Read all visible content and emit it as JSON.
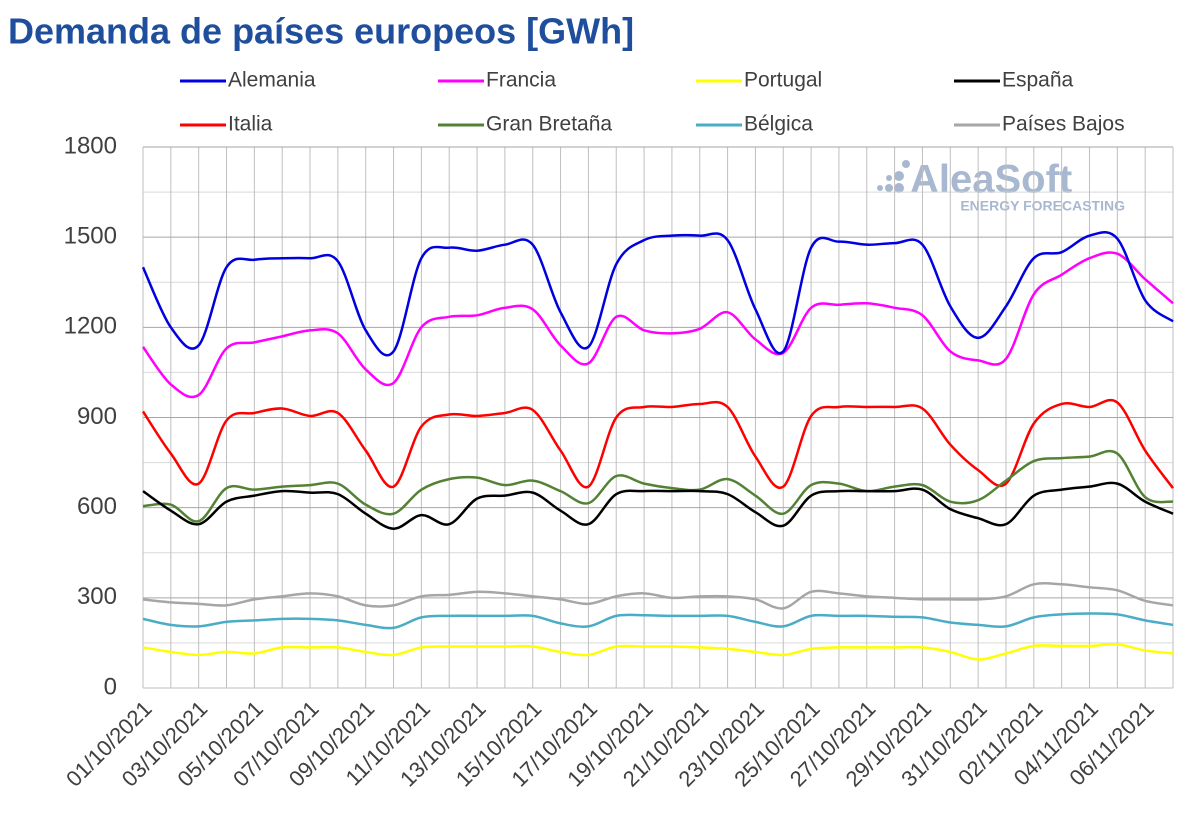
{
  "chart_data": {
    "type": "line",
    "title": "Demanda de países europeos [GWh]",
    "logo": {
      "name": "AleaSoft",
      "tagline": "ENERGY FORECASTING"
    },
    "categories": [
      "01/10/2021",
      null,
      "03/10/2021",
      null,
      "05/10/2021",
      null,
      "07/10/2021",
      null,
      "09/10/2021",
      null,
      "11/10/2021",
      null,
      "13/10/2021",
      null,
      "15/10/2021",
      null,
      "17/10/2021",
      null,
      "19/10/2021",
      null,
      "21/10/2021",
      null,
      "23/10/2021",
      null,
      "25/10/2021",
      null,
      "27/10/2021",
      null,
      "29/10/2021",
      null,
      "31/10/2021",
      null,
      "02/11/2021",
      null,
      "04/11/2021",
      null,
      "06/11/2021",
      null
    ],
    "ylim": [
      0,
      1800
    ],
    "yticks": [
      0,
      300,
      600,
      900,
      1200,
      1500,
      1800
    ],
    "yminorticks": [
      150,
      450,
      750,
      1050,
      1350,
      1650
    ],
    "grid": true,
    "smooth": true,
    "legend": "top",
    "series": [
      {
        "name": "Alemania",
        "color": "#0000e0",
        "values": [
          1400,
          1200,
          1140,
          1400,
          1425,
          1430,
          1430,
          1420,
          1190,
          1120,
          1430,
          1465,
          1455,
          1475,
          1475,
          1250,
          1135,
          1410,
          1490,
          1505,
          1505,
          1490,
          1260,
          1120,
          1465,
          1485,
          1475,
          1480,
          1475,
          1270,
          1165,
          1270,
          1430,
          1450,
          1505,
          1495,
          1290,
          1220
        ]
      },
      {
        "name": "Francia",
        "color": "#ff00ff",
        "values": [
          1135,
          1010,
          975,
          1130,
          1150,
          1170,
          1190,
          1180,
          1060,
          1015,
          1200,
          1235,
          1240,
          1265,
          1260,
          1140,
          1080,
          1235,
          1190,
          1180,
          1195,
          1250,
          1160,
          1115,
          1265,
          1275,
          1280,
          1265,
          1240,
          1120,
          1090,
          1095,
          1310,
          1375,
          1430,
          1445,
          1360,
          1280
        ]
      },
      {
        "name": "Portugal",
        "color": "#ffff00",
        "values": [
          135,
          120,
          110,
          120,
          115,
          135,
          135,
          135,
          120,
          110,
          135,
          138,
          138,
          138,
          138,
          120,
          110,
          138,
          138,
          138,
          135,
          130,
          120,
          110,
          130,
          135,
          135,
          135,
          135,
          120,
          95,
          115,
          140,
          140,
          140,
          145,
          125,
          115
        ]
      },
      {
        "name": "España",
        "color": "#000000",
        "values": [
          655,
          590,
          545,
          620,
          640,
          655,
          650,
          645,
          580,
          530,
          575,
          545,
          630,
          640,
          650,
          590,
          545,
          645,
          655,
          655,
          655,
          645,
          585,
          540,
          640,
          655,
          655,
          655,
          660,
          595,
          565,
          545,
          640,
          660,
          670,
          680,
          620,
          580
        ]
      },
      {
        "name": "Italia",
        "color": "#ff0000",
        "values": [
          920,
          780,
          680,
          890,
          915,
          930,
          905,
          915,
          790,
          670,
          870,
          910,
          905,
          915,
          925,
          790,
          670,
          900,
          935,
          935,
          945,
          935,
          770,
          670,
          905,
          935,
          935,
          935,
          930,
          810,
          725,
          680,
          880,
          945,
          935,
          950,
          790,
          665
        ]
      },
      {
        "name": "Gran Bretaña",
        "color": "#548235",
        "values": [
          605,
          610,
          555,
          665,
          660,
          670,
          675,
          680,
          610,
          580,
          660,
          695,
          700,
          675,
          690,
          655,
          615,
          705,
          680,
          665,
          660,
          695,
          640,
          580,
          675,
          680,
          655,
          670,
          675,
          620,
          625,
          690,
          755,
          765,
          770,
          780,
          635,
          620
        ]
      },
      {
        "name": "Bélgica",
        "color": "#4bacc6",
        "values": [
          230,
          210,
          205,
          220,
          225,
          230,
          230,
          225,
          210,
          200,
          235,
          240,
          240,
          240,
          240,
          215,
          205,
          240,
          242,
          240,
          240,
          240,
          220,
          205,
          240,
          240,
          240,
          237,
          235,
          218,
          210,
          205,
          235,
          245,
          248,
          245,
          225,
          210
        ]
      },
      {
        "name": "Países Bajos",
        "color": "#a6a6a6",
        "values": [
          295,
          285,
          280,
          275,
          295,
          305,
          315,
          305,
          275,
          275,
          305,
          310,
          320,
          315,
          305,
          295,
          280,
          305,
          315,
          300,
          305,
          305,
          295,
          265,
          320,
          315,
          305,
          300,
          295,
          295,
          295,
          305,
          345,
          345,
          335,
          325,
          290,
          275
        ]
      }
    ]
  }
}
